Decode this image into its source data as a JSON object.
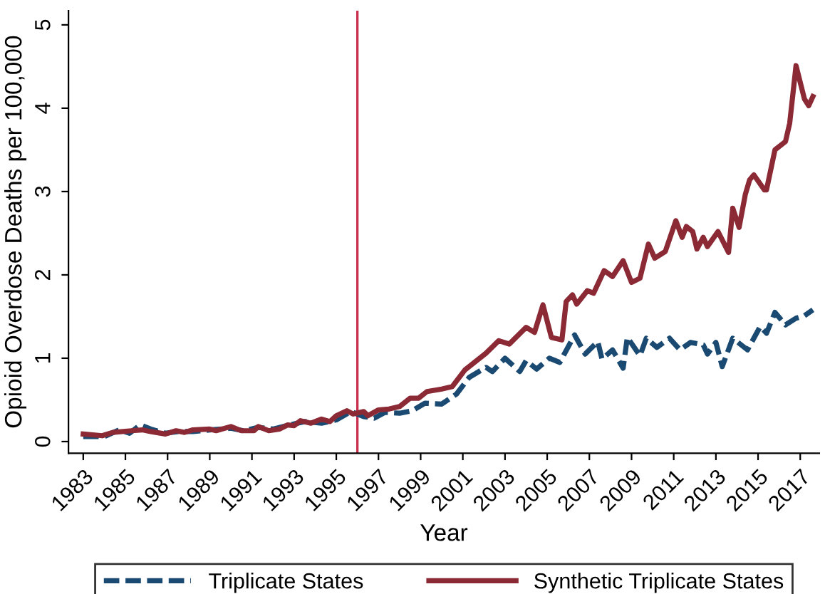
{
  "chart_data": {
    "type": "line",
    "xlabel": "Year",
    "ylabel": "Opioid Overdose Deaths per 100,000",
    "xlim": [
      1982.3,
      2017.9
    ],
    "xticks": [
      1983,
      1985,
      1987,
      1989,
      1991,
      1993,
      1995,
      1997,
      1999,
      2001,
      2003,
      2005,
      2007,
      2009,
      2011,
      2013,
      2015,
      2017
    ],
    "ylim": [
      -0.14,
      5.17
    ],
    "yticks": [
      0,
      1,
      2,
      3,
      4,
      5
    ],
    "grid": false,
    "legend": "bottom",
    "ref_lines": [
      {
        "axis": "x",
        "value": 1996,
        "color": "#c8304e"
      }
    ],
    "series": [
      {
        "name": "Triplicate States",
        "color": "#1a4a72",
        "line_style": "dashed",
        "x": [
          1983,
          1984,
          1984.7,
          1985.2,
          1985.7,
          1986.2,
          1986.9,
          1987.5,
          1988.2,
          1989,
          1990,
          1990.6,
          1991.3,
          1992,
          1992.8,
          1993.5,
          1994.3,
          1995,
          1995.7,
          1996.3,
          1996.8,
          1997.3,
          1998,
          1998.6,
          1999.2,
          2000.0,
          2000.7,
          2001.3,
          2002.1,
          2002.4,
          2003.0,
          2003.7,
          2004.0,
          2004.5,
          2005.1,
          2005.6,
          2006.3,
          2006.8,
          2007.4,
          2007.6,
          2008.1,
          2008.6,
          2008.8,
          2009.4,
          2009.7,
          2010.2,
          2010.8,
          2011.3,
          2011.8,
          2012.4,
          2012.6,
          2013.0,
          2013.3,
          2013.8,
          2014.5,
          2015.1,
          2015.4,
          2015.8,
          2016.3,
          2016.8,
          2017.2,
          2017.6
        ],
        "values": [
          0.06,
          0.06,
          0.14,
          0.1,
          0.2,
          0.15,
          0.1,
          0.12,
          0.12,
          0.14,
          0.16,
          0.13,
          0.17,
          0.15,
          0.2,
          0.24,
          0.22,
          0.26,
          0.36,
          0.3,
          0.28,
          0.35,
          0.34,
          0.37,
          0.46,
          0.45,
          0.57,
          0.77,
          0.89,
          0.84,
          1.0,
          0.84,
          0.97,
          0.87,
          1.0,
          0.95,
          1.28,
          1.05,
          1.2,
          0.99,
          1.1,
          0.88,
          1.25,
          1.03,
          1.24,
          1.13,
          1.24,
          1.1,
          1.19,
          1.16,
          1.05,
          1.19,
          0.9,
          1.24,
          1.1,
          1.38,
          1.3,
          1.55,
          1.4,
          1.48,
          1.51,
          1.58
        ]
      },
      {
        "name": "Synthetic Triplicate States",
        "color": "#8b2a35",
        "line_style": "solid",
        "x": [
          1983.0,
          1983.9,
          1984.4,
          1985.3,
          1985.8,
          1986.2,
          1986.9,
          1987.4,
          1987.8,
          1988.2,
          1989.0,
          1989.3,
          1990.0,
          1990.5,
          1991.1,
          1991.3,
          1991.8,
          1992.3,
          1992.7,
          1993.0,
          1993.3,
          1993.8,
          1994.3,
          1994.7,
          1995.0,
          1995.5,
          1995.8,
          1996.3,
          1996.5,
          1997.0,
          1997.5,
          1998.0,
          1998.5,
          1998.9,
          1999.3,
          2000.0,
          2000.5,
          2001.1,
          2002.1,
          2002.7,
          2003.2,
          2004.0,
          2004.4,
          2004.8,
          2005.2,
          2005.7,
          2005.9,
          2006.2,
          2006.4,
          2006.9,
          2007.2,
          2007.7,
          2008.1,
          2008.6,
          2009.0,
          2009.4,
          2009.8,
          2010.1,
          2010.6,
          2011.1,
          2011.4,
          2011.6,
          2011.9,
          2012.1,
          2012.4,
          2012.6,
          2013.1,
          2013.6,
          2013.8,
          2014.1,
          2014.4,
          2014.6,
          2014.8,
          2015.3,
          2015.4,
          2015.8,
          2016.3,
          2016.5,
          2016.8,
          2017.2,
          2017.4,
          2017.6
        ],
        "values": [
          0.09,
          0.07,
          0.11,
          0.13,
          0.14,
          0.12,
          0.09,
          0.13,
          0.11,
          0.14,
          0.15,
          0.13,
          0.18,
          0.13,
          0.13,
          0.18,
          0.13,
          0.15,
          0.2,
          0.19,
          0.25,
          0.22,
          0.27,
          0.24,
          0.31,
          0.37,
          0.33,
          0.36,
          0.31,
          0.38,
          0.39,
          0.42,
          0.52,
          0.52,
          0.6,
          0.63,
          0.66,
          0.86,
          1.06,
          1.21,
          1.17,
          1.37,
          1.31,
          1.64,
          1.25,
          1.22,
          1.68,
          1.76,
          1.65,
          1.81,
          1.78,
          2.05,
          1.98,
          2.17,
          1.91,
          1.96,
          2.37,
          2.2,
          2.28,
          2.65,
          2.45,
          2.58,
          2.52,
          2.31,
          2.45,
          2.34,
          2.52,
          2.27,
          2.8,
          2.57,
          2.97,
          3.14,
          3.2,
          3.02,
          3.02,
          3.5,
          3.6,
          3.82,
          4.51,
          4.11,
          4.03,
          4.14
        ]
      }
    ]
  }
}
